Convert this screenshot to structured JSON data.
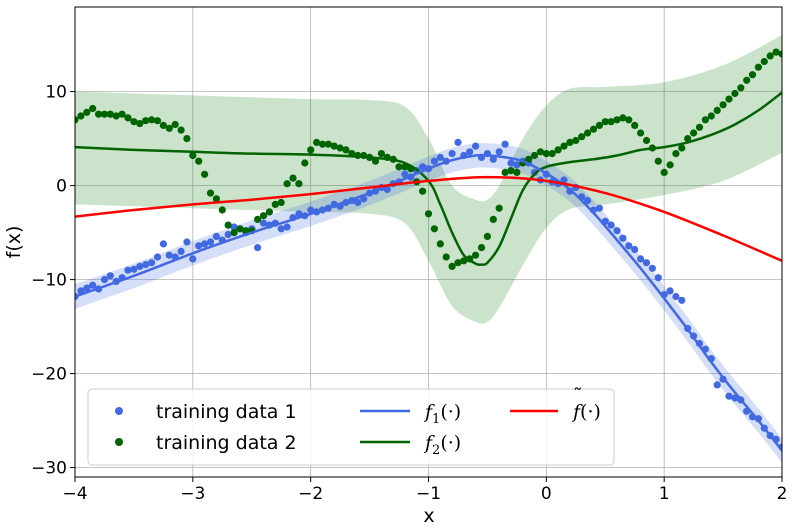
{
  "chart_data": {
    "type": "line",
    "title": "",
    "xlabel": "x",
    "ylabel": "f(x)",
    "xlim": [
      -4,
      2
    ],
    "ylim": [
      -31,
      19
    ],
    "xticks": [
      -4,
      -3,
      -2,
      -1,
      0,
      1,
      2
    ],
    "yticks": [
      -30,
      -20,
      -10,
      0,
      10
    ],
    "xtick_labels": [
      "−4",
      "−3",
      "−2",
      "−1",
      "0",
      "1",
      "2"
    ],
    "ytick_labels": [
      "−30",
      "−20",
      "−10",
      "0",
      "10"
    ],
    "grid": true,
    "legend_placement": "bottom-left",
    "colors": {
      "series1": "#4169e1",
      "series2": "#006400",
      "shared": "#ff0000",
      "band1": "#4169e1",
      "band2": "#2e8b2e"
    },
    "legend": {
      "training1": "training data 1",
      "training2": "training data 2",
      "f1": "f₁(·)",
      "f2": "f₂(·)",
      "fshared": "f̃(·)"
    },
    "legend_parts": {
      "f1_sym": "f",
      "f1_sub": "1",
      "f1_arg": "(·)",
      "f2_sym": "f",
      "f2_sub": "2",
      "f2_arg": "(·)",
      "f_tilde_sym": "f",
      "f_tilde_mark": "˜",
      "f_tilde_arg": "(·)"
    },
    "series": [
      {
        "name": "f1(·)",
        "color": "#4169e1",
        "band_halfwidth": 1.3,
        "x": [
          -4.0,
          -3.5,
          -3.0,
          -2.5,
          -2.0,
          -1.5,
          -1.0,
          -0.8,
          -0.6,
          -0.5,
          -0.4,
          -0.2,
          0.0,
          0.2,
          0.4,
          0.6,
          0.8,
          1.0,
          1.2,
          1.4,
          1.6,
          1.8,
          2.0
        ],
        "y": [
          -11.8,
          -9.6,
          -7.2,
          -5.0,
          -3.0,
          -0.8,
          1.8,
          2.7,
          3.2,
          3.2,
          3.1,
          2.6,
          1.3,
          -0.4,
          -2.9,
          -5.8,
          -8.8,
          -12.0,
          -15.3,
          -18.8,
          -22.0,
          -25.0,
          -28.2
        ]
      },
      {
        "name": "f2(·)",
        "color": "#006400",
        "x": [
          -4.0,
          -3.5,
          -3.0,
          -2.5,
          -2.0,
          -1.5,
          -1.2,
          -1.0,
          -0.9,
          -0.8,
          -0.7,
          -0.6,
          -0.55,
          -0.5,
          -0.4,
          -0.3,
          -0.2,
          -0.1,
          0.0,
          0.2,
          0.4,
          0.6,
          0.8,
          1.0,
          1.2,
          1.4,
          1.6,
          1.8,
          2.0
        ],
        "y": [
          4.1,
          3.8,
          3.6,
          3.4,
          3.3,
          3.0,
          2.4,
          0.5,
          -2.0,
          -5.0,
          -7.4,
          -8.3,
          -8.4,
          -8.2,
          -6.5,
          -3.5,
          -0.5,
          1.2,
          2.0,
          2.5,
          2.8,
          3.2,
          3.8,
          4.1,
          4.6,
          5.4,
          6.5,
          8.0,
          9.9
        ]
      },
      {
        "name": "f̃(·)",
        "color": "#ff0000",
        "x": [
          -4.0,
          -3.5,
          -3.0,
          -2.5,
          -2.0,
          -1.5,
          -1.0,
          -0.5,
          0.0,
          0.5,
          1.0,
          1.5,
          2.0
        ],
        "y": [
          -3.3,
          -2.6,
          -2.0,
          -1.5,
          -0.9,
          -0.2,
          0.5,
          0.9,
          0.5,
          -0.8,
          -2.8,
          -5.3,
          -8.0
        ]
      }
    ],
    "band2": {
      "x": [
        -4.0,
        -3.0,
        -2.0,
        -1.5,
        -1.2,
        -1.0,
        -0.8,
        -0.6,
        -0.5,
        -0.4,
        -0.2,
        0.0,
        0.2,
        0.5,
        1.0,
        1.5,
        2.0
      ],
      "upper": [
        10.0,
        9.6,
        9.2,
        9.1,
        8.4,
        5.0,
        0.0,
        -1.5,
        -1.5,
        0.0,
        5.0,
        8.5,
        10.3,
        10.5,
        11.0,
        12.8,
        16.0
      ],
      "lower": [
        -2.0,
        -2.4,
        -2.8,
        -3.0,
        -4.0,
        -8.0,
        -12.8,
        -14.5,
        -14.5,
        -13.0,
        -8.5,
        -4.5,
        -2.5,
        -2.0,
        -1.0,
        0.5,
        3.5
      ]
    },
    "scatter": [
      {
        "name": "training data 1",
        "color": "#4169e1",
        "x": [
          -4.0,
          -3.95,
          -3.9,
          -3.85,
          -3.8,
          -3.75,
          -3.7,
          -3.65,
          -3.6,
          -3.55,
          -3.5,
          -3.45,
          -3.4,
          -3.35,
          -3.3,
          -3.25,
          -3.2,
          -3.15,
          -3.1,
          -3.05,
          -3.0,
          -2.95,
          -2.9,
          -2.85,
          -2.8,
          -2.75,
          -2.7,
          -2.65,
          -2.6,
          -2.55,
          -2.5,
          -2.45,
          -2.4,
          -2.35,
          -2.3,
          -2.25,
          -2.2,
          -2.15,
          -2.1,
          -2.05,
          -2.0,
          -1.95,
          -1.9,
          -1.85,
          -1.8,
          -1.75,
          -1.7,
          -1.65,
          -1.6,
          -1.55,
          -1.5,
          -1.45,
          -1.4,
          -1.35,
          -1.3,
          -1.25,
          -1.2,
          -1.15,
          -1.1,
          -1.05,
          -1.0,
          -0.95,
          -0.9,
          -0.85,
          -0.8,
          -0.75,
          -0.7,
          -0.65,
          -0.6,
          -0.55,
          -0.5,
          -0.45,
          -0.4,
          -0.35,
          -0.3,
          -0.25,
          -0.2,
          -0.15,
          -0.1,
          -0.05,
          0.0,
          0.05,
          0.1,
          0.15,
          0.2,
          0.25,
          0.3,
          0.35,
          0.4,
          0.45,
          0.5,
          0.55,
          0.6,
          0.65,
          0.7,
          0.75,
          0.8,
          0.85,
          0.9,
          0.95,
          1.0,
          1.05,
          1.1,
          1.15,
          1.2,
          1.25,
          1.3,
          1.35,
          1.4,
          1.45,
          1.5,
          1.55,
          1.6,
          1.65,
          1.7,
          1.75,
          1.8,
          1.85,
          1.9,
          1.95,
          2.0
        ],
        "y": [
          -11.8,
          -11.2,
          -10.9,
          -10.6,
          -11.0,
          -10.0,
          -9.6,
          -10.2,
          -9.8,
          -9.0,
          -8.9,
          -8.6,
          -8.4,
          -8.2,
          -7.6,
          -6.2,
          -7.4,
          -7.6,
          -7.0,
          -6.0,
          -7.8,
          -6.4,
          -6.2,
          -6.0,
          -5.4,
          -5.8,
          -5.2,
          -4.4,
          -4.6,
          -5.0,
          -4.6,
          -6.6,
          -4.0,
          -4.2,
          -4.0,
          -4.6,
          -4.4,
          -3.4,
          -3.0,
          -3.2,
          -2.6,
          -2.8,
          -2.6,
          -2.4,
          -2.0,
          -2.2,
          -1.8,
          -1.6,
          -1.8,
          -1.4,
          -0.8,
          -0.6,
          -0.2,
          -0.4,
          0.2,
          0.4,
          1.2,
          0.9,
          1.6,
          2.0,
          1.8,
          2.6,
          3.0,
          2.6,
          3.4,
          4.6,
          3.2,
          3.6,
          4.2,
          3.0,
          3.4,
          2.8,
          3.6,
          4.4,
          2.4,
          2.2,
          2.6,
          2.4,
          1.4,
          0.6,
          1.2,
          0.4,
          0.2,
          0.6,
          -0.6,
          -0.2,
          -1.2,
          -1.6,
          -2.6,
          -2.4,
          -3.8,
          -4.2,
          -4.8,
          -5.6,
          -6.4,
          -6.8,
          -7.8,
          -8.2,
          -8.8,
          -9.8,
          -11.6,
          -11.2,
          -11.8,
          -12.2,
          -15.2,
          -16.0,
          -16.8,
          -17.4,
          -18.4,
          -21.2,
          -20.6,
          -22.4,
          -22.6,
          -22.8,
          -24.0,
          -24.6,
          -24.8,
          -25.8,
          -26.6,
          -27.0,
          -27.8
        ]
      },
      {
        "name": "training data 2",
        "color": "#006400",
        "x": [
          -4.0,
          -3.95,
          -3.9,
          -3.85,
          -3.8,
          -3.75,
          -3.7,
          -3.65,
          -3.6,
          -3.55,
          -3.5,
          -3.45,
          -3.4,
          -3.35,
          -3.3,
          -3.25,
          -3.2,
          -3.15,
          -3.1,
          -3.05,
          -3.0,
          -2.95,
          -2.9,
          -2.85,
          -2.8,
          -2.75,
          -2.7,
          -2.65,
          -2.6,
          -2.55,
          -2.5,
          -2.45,
          -2.4,
          -2.35,
          -2.3,
          -2.25,
          -2.2,
          -2.15,
          -2.1,
          -2.05,
          -2.0,
          -1.95,
          -1.9,
          -1.85,
          -1.8,
          -1.75,
          -1.7,
          -1.65,
          -1.6,
          -1.55,
          -1.5,
          -1.45,
          -1.4,
          -1.35,
          -1.3,
          -1.25,
          -1.2,
          -1.15,
          -1.1,
          -1.05,
          -1.0,
          -0.95,
          -0.9,
          -0.85,
          -0.8,
          -0.75,
          -0.7,
          -0.65,
          -0.6,
          -0.55,
          -0.5,
          -0.45,
          -0.4,
          -0.35,
          -0.3,
          -0.25,
          -0.2,
          -0.15,
          -0.1,
          -0.05,
          0.0,
          0.05,
          0.1,
          0.15,
          0.2,
          0.25,
          0.3,
          0.35,
          0.4,
          0.45,
          0.5,
          0.55,
          0.6,
          0.65,
          0.7,
          0.75,
          0.8,
          0.85,
          0.9,
          0.95,
          1.0,
          1.05,
          1.1,
          1.15,
          1.2,
          1.25,
          1.3,
          1.35,
          1.4,
          1.45,
          1.5,
          1.55,
          1.6,
          1.65,
          1.7,
          1.75,
          1.8,
          1.85,
          1.9,
          1.95,
          2.0
        ],
        "y": [
          7.0,
          7.4,
          7.8,
          8.2,
          7.6,
          7.6,
          7.6,
          7.4,
          7.6,
          7.2,
          6.8,
          6.6,
          6.9,
          7.0,
          6.9,
          6.4,
          6.1,
          6.5,
          5.9,
          5.0,
          3.2,
          2.6,
          1.2,
          -0.8,
          -1.4,
          -2.6,
          -4.2,
          -5.0,
          -4.6,
          -4.8,
          -4.8,
          -3.6,
          -3.2,
          -2.8,
          -2.0,
          -1.8,
          0.2,
          0.8,
          0.2,
          2.4,
          3.8,
          4.6,
          4.4,
          4.4,
          4.2,
          4.0,
          3.8,
          3.4,
          3.2,
          3.2,
          3.0,
          2.6,
          3.4,
          3.0,
          2.8,
          2.0,
          2.0,
          1.8,
          0.4,
          -0.6,
          -3.0,
          -4.6,
          -6.2,
          -7.6,
          -8.6,
          -8.2,
          -8.0,
          -7.8,
          -7.4,
          -6.6,
          -5.4,
          -3.6,
          -2.4,
          1.4,
          1.6,
          1.4,
          2.4,
          2.8,
          3.2,
          3.6,
          3.4,
          3.4,
          3.8,
          4.2,
          4.6,
          4.8,
          5.2,
          5.6,
          6.0,
          6.4,
          6.8,
          6.8,
          7.0,
          7.2,
          7.0,
          6.4,
          5.6,
          4.8,
          4.0,
          2.6,
          1.4,
          2.2,
          3.4,
          4.0,
          5.0,
          5.6,
          6.2,
          7.0,
          7.4,
          8.0,
          8.6,
          9.2,
          9.8,
          10.4,
          11.2,
          11.8,
          12.6,
          13.2,
          13.8,
          14.2,
          14.0
        ]
      }
    ]
  }
}
